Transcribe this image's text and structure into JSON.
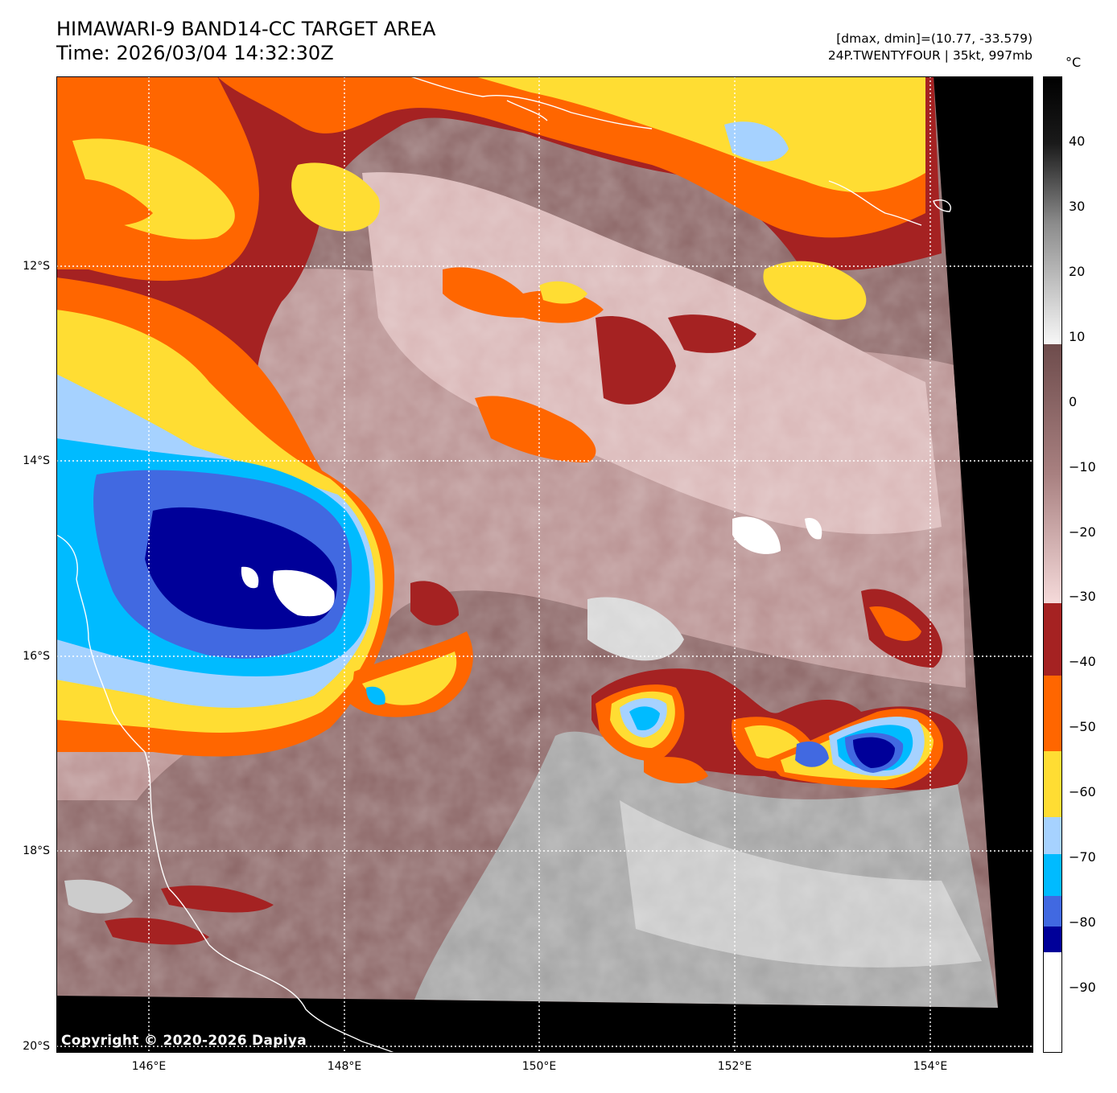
{
  "header": {
    "title_line1": "HIMAWARI-9 BAND14-CC TARGET AREA",
    "title_line2": "Time: 2026/03/04 14:32:30Z",
    "info_line1": "[dmax, dmin]=(10.77, -33.579)",
    "info_line2": "24P.TWENTYFOUR | 35kt, 997mb"
  },
  "map": {
    "lat_labels": [
      "12°S",
      "14°S",
      "16°S",
      "18°S",
      "20°S"
    ],
    "lon_labels": [
      "146°E",
      "148°E",
      "150°E",
      "152°E",
      "154°E"
    ],
    "copyright": "Copyright © 2020-2026 Dapiya"
  },
  "colorbar": {
    "unit": "°C",
    "ticks": [
      "40",
      "30",
      "20",
      "10",
      "0",
      "−10",
      "−20",
      "−30",
      "−40",
      "−50",
      "−60",
      "−70",
      "−80",
      "−90"
    ],
    "tick_values": [
      40,
      30,
      20,
      10,
      0,
      -10,
      -20,
      -30,
      -40,
      -50,
      -60,
      -70,
      -80,
      -90
    ],
    "range": [
      -100,
      50
    ],
    "colors": {
      "black": "#000000",
      "light_gray": "#f2f2f2",
      "brown_gray": "#7a5555",
      "pink": "#f2d2d2",
      "dark_red": "#a52222",
      "orange": "#ff6600",
      "yellow": "#ffdd33",
      "light_blue": "#a6d2ff",
      "cyan": "#00bbff",
      "blue": "#4169e1",
      "navy": "#000099",
      "white": "#ffffff"
    }
  }
}
